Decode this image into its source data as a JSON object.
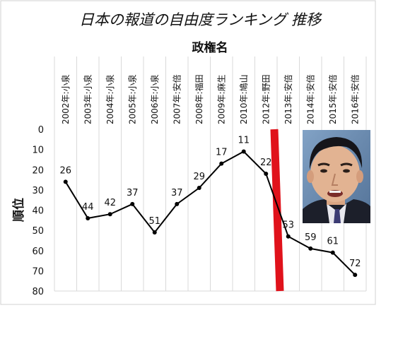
{
  "chart_data": {
    "type": "line",
    "title": "日本の報道の自由度ランキング 推移",
    "xlabel": "政権名",
    "ylabel": "順位",
    "categories": [
      "2002年:小泉",
      "2003年:小泉",
      "2004年:小泉",
      "2005年:小泉",
      "2006年:小泉",
      "2007年:安倍",
      "2008年:福田",
      "2009年:麻生",
      "2010年:鳩山",
      "2012年:野田",
      "2013年:安倍",
      "2014年:安倍",
      "2015年:安倍",
      "2016年:安倍"
    ],
    "values": [
      26,
      44,
      42,
      37,
      51,
      37,
      29,
      17,
      11,
      22,
      53,
      59,
      61,
      72
    ],
    "yticks": [
      0,
      10,
      20,
      30,
      40,
      50,
      60,
      70,
      80
    ],
    "ylim": [
      0,
      80
    ],
    "y_inverted": true,
    "grid": "vertical",
    "line_color": "#000000",
    "marker_color": "#000000",
    "divider": {
      "between": [
        "2012年:野田",
        "2013年:安倍"
      ],
      "color": "#e0121b"
    },
    "photo": "portrait-photo"
  }
}
